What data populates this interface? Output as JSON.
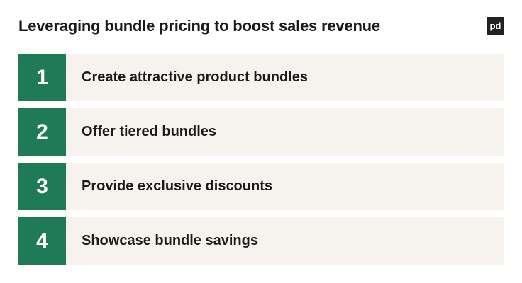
{
  "title": "Leveraging bundle pricing to boost sales revenue",
  "logo": "pd",
  "colors": {
    "accent": "#1f7a58",
    "row_bg": "#f6f3ef"
  },
  "steps": [
    {
      "number": "1",
      "label": "Create attractive product bundles"
    },
    {
      "number": "2",
      "label": "Offer tiered bundles"
    },
    {
      "number": "3",
      "label": "Provide exclusive discounts"
    },
    {
      "number": "4",
      "label": "Showcase bundle savings"
    }
  ]
}
